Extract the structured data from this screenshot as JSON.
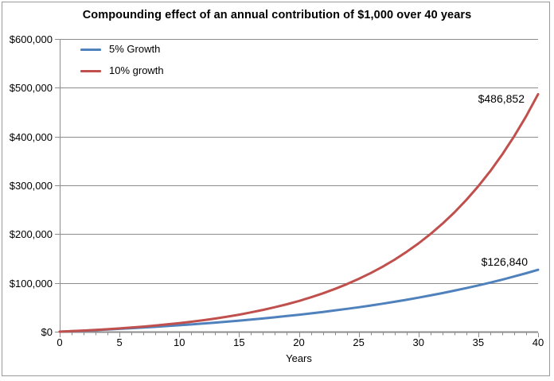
{
  "chart_data": {
    "type": "line",
    "title": "Compounding effect of an annual contribution of $1,000 over 40 years",
    "xlabel": "Years",
    "ylabel": "",
    "xlim": [
      0,
      40
    ],
    "ylim": [
      0,
      600000
    ],
    "grid": "horizontal-major",
    "legend_position": "top-left-inside",
    "x": [
      0,
      1,
      2,
      3,
      4,
      5,
      6,
      7,
      8,
      9,
      10,
      11,
      12,
      13,
      14,
      15,
      16,
      17,
      18,
      19,
      20,
      21,
      22,
      23,
      24,
      25,
      26,
      27,
      28,
      29,
      30,
      31,
      32,
      33,
      34,
      35,
      36,
      37,
      38,
      39,
      40
    ],
    "series": [
      {
        "name": "5% Growth",
        "color": "#4F81BD",
        "values": [
          0,
          1050,
          2153,
          3310,
          4526,
          5802,
          7142,
          8549,
          10027,
          11578,
          13207,
          14917,
          16713,
          18599,
          20579,
          22657,
          24840,
          27132,
          29539,
          32066,
          34719,
          37505,
          40430,
          43502,
          46727,
          50113,
          53669,
          57403,
          61323,
          65439,
          69761,
          74299,
          79064,
          84067,
          89320,
          94836,
          100628,
          106710,
          113095,
          119800,
          126840
        ]
      },
      {
        "name": "10% growth",
        "color": "#C0504D",
        "values": [
          0,
          1100,
          2310,
          3641,
          5105,
          6716,
          8487,
          10436,
          12579,
          14937,
          17531,
          20384,
          23523,
          26975,
          30772,
          34950,
          39545,
          44599,
          50159,
          56275,
          63002,
          70403,
          78543,
          87497,
          97347,
          108182,
          120100,
          133210,
          147631,
          163494,
          180943,
          200138,
          221252,
          244477,
          270024,
          298127,
          329039,
          363043,
          400448,
          441593,
          486852
        ]
      }
    ],
    "y_ticks": [
      {
        "value": 0,
        "label": "$0"
      },
      {
        "value": 100000,
        "label": "$100,000"
      },
      {
        "value": 200000,
        "label": "$200,000"
      },
      {
        "value": 300000,
        "label": "$300,000"
      },
      {
        "value": 400000,
        "label": "$400,000"
      },
      {
        "value": 500000,
        "label": "$500,000"
      },
      {
        "value": 600000,
        "label": "$600,000"
      }
    ],
    "x_ticks": [
      {
        "value": 0,
        "label": "0"
      },
      {
        "value": 5,
        "label": "5"
      },
      {
        "value": 10,
        "label": "10"
      },
      {
        "value": 15,
        "label": "15"
      },
      {
        "value": 20,
        "label": "20"
      },
      {
        "value": 25,
        "label": "25"
      },
      {
        "value": 30,
        "label": "30"
      },
      {
        "value": 35,
        "label": "35"
      },
      {
        "value": 40,
        "label": "40"
      }
    ],
    "x_minor_tick_every": 1,
    "annotations": [
      {
        "series": "10% growth",
        "text": "$486,852"
      },
      {
        "series": "5% Growth",
        "text": "$126,840"
      }
    ]
  },
  "colors": {
    "background": "#FFFFFF",
    "gridline": "#8C8C8C",
    "axis": "#8C8C8C",
    "frame_border": "#9A9A9A",
    "text": "#000000",
    "series_blue": "#4F81BD",
    "series_red": "#C0504D"
  }
}
